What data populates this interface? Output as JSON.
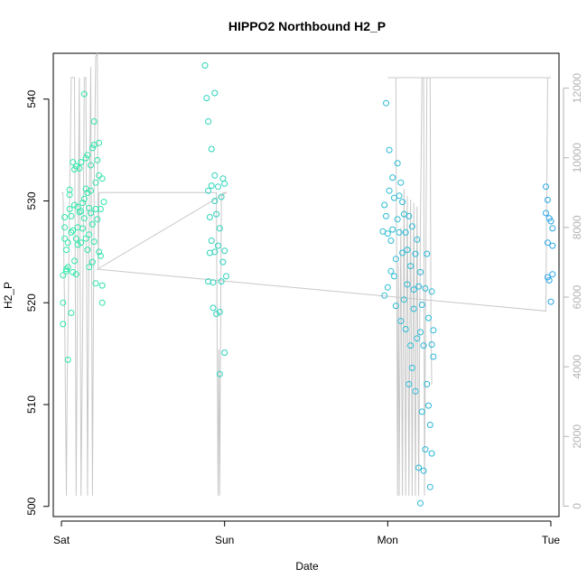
{
  "chart_data": {
    "type": "scatter",
    "title": "HIPPO2 Northbound H2_P",
    "xlabel": "Date",
    "ylabel": "H2_P",
    "x_ticks": [
      "Sat",
      "Sun",
      "Mon",
      "Tue"
    ],
    "y_ticks": [
      500,
      510,
      520,
      530,
      540
    ],
    "y_right_ticks": [
      0,
      2000,
      4000,
      6000,
      8000,
      10000,
      12000
    ],
    "xlim": [
      -0.05,
      3.05
    ],
    "ylim": [
      499,
      544.5
    ],
    "y_right_lim": [
      -300,
      13000
    ],
    "axis_color_right": "#b3b3b3",
    "line_color": "#c8c8c8",
    "point_color_start": "#2ee8a8",
    "point_color_end": "#29a6e6",
    "grid": false,
    "series": [
      {
        "points": [
          [
            0.01,
            520.0
          ],
          [
            0.01,
            517.9
          ],
          [
            0.01,
            522.7
          ],
          [
            0.02,
            528.4
          ],
          [
            0.02,
            526.3
          ],
          [
            0.02,
            527.4
          ],
          [
            0.03,
            523.3
          ],
          [
            0.03,
            523.1
          ],
          [
            0.03,
            525.2
          ],
          [
            0.04,
            514.4
          ],
          [
            0.04,
            525.9
          ],
          [
            0.04,
            523.5
          ],
          [
            0.05,
            529.2
          ],
          [
            0.05,
            530.6
          ],
          [
            0.05,
            531.1
          ],
          [
            0.06,
            519.0
          ],
          [
            0.06,
            526.9
          ],
          [
            0.06,
            528.5
          ],
          [
            0.07,
            533.8
          ],
          [
            0.07,
            527.1
          ],
          [
            0.07,
            523.0
          ],
          [
            0.08,
            533.1
          ],
          [
            0.08,
            529.6
          ],
          [
            0.08,
            524.1
          ],
          [
            0.09,
            522.8
          ],
          [
            0.09,
            526.3
          ],
          [
            0.09,
            533.4
          ],
          [
            0.1,
            525.7
          ],
          [
            0.1,
            529.4
          ],
          [
            0.1,
            527.4
          ],
          [
            0.11,
            533.2
          ],
          [
            0.11,
            528.9
          ],
          [
            0.12,
            533.8
          ],
          [
            0.12,
            525.9
          ],
          [
            0.12,
            529.0
          ],
          [
            0.13,
            529.8
          ],
          [
            0.13,
            527.3
          ],
          [
            0.14,
            530.2
          ],
          [
            0.14,
            540.5
          ],
          [
            0.14,
            528.3
          ],
          [
            0.15,
            534.2
          ],
          [
            0.15,
            526.3
          ],
          [
            0.15,
            531.2
          ],
          [
            0.16,
            534.5
          ],
          [
            0.16,
            530.8
          ],
          [
            0.16,
            525.2
          ],
          [
            0.17,
            529.3
          ],
          [
            0.17,
            523.5
          ],
          [
            0.17,
            526.7
          ],
          [
            0.18,
            533.5
          ],
          [
            0.18,
            528.8
          ],
          [
            0.18,
            531.0
          ],
          [
            0.19,
            535.2
          ],
          [
            0.19,
            527.7
          ],
          [
            0.19,
            524.0
          ],
          [
            0.2,
            537.8
          ],
          [
            0.2,
            535.5
          ],
          [
            0.2,
            526.0
          ],
          [
            0.21,
            531.8
          ],
          [
            0.21,
            529.2
          ],
          [
            0.21,
            521.9
          ],
          [
            0.22,
            534.0
          ],
          [
            0.22,
            528.2
          ],
          [
            0.23,
            535.7
          ],
          [
            0.23,
            525.0
          ],
          [
            0.23,
            532.5
          ],
          [
            0.24,
            529.2
          ],
          [
            0.24,
            524.6
          ],
          [
            0.25,
            532.2
          ],
          [
            0.25,
            520.0
          ],
          [
            0.25,
            521.7
          ],
          [
            0.26,
            529.9
          ],
          [
            0.88,
            543.3
          ],
          [
            0.89,
            540.1
          ],
          [
            0.9,
            537.8
          ],
          [
            0.9,
            531.0
          ],
          [
            0.9,
            522.1
          ],
          [
            0.91,
            528.4
          ],
          [
            0.91,
            524.9
          ],
          [
            0.92,
            535.1
          ],
          [
            0.92,
            531.5
          ],
          [
            0.92,
            526.1
          ],
          [
            0.93,
            522.0
          ],
          [
            0.93,
            519.5
          ],
          [
            0.94,
            530.0
          ],
          [
            0.94,
            532.5
          ],
          [
            0.94,
            540.6
          ],
          [
            0.94,
            525.0
          ],
          [
            0.95,
            518.9
          ],
          [
            0.95,
            528.7
          ],
          [
            0.96,
            531.4
          ],
          [
            0.96,
            525.6
          ],
          [
            0.97,
            519.1
          ],
          [
            0.97,
            513.0
          ],
          [
            0.97,
            527.3
          ],
          [
            0.98,
            522.1
          ],
          [
            0.98,
            530.4
          ],
          [
            0.99,
            524.0
          ],
          [
            0.99,
            532.2
          ],
          [
            1.0,
            531.7
          ],
          [
            1.0,
            525.1
          ],
          [
            1.0,
            515.1
          ],
          [
            1.01,
            522.6
          ],
          [
            1.97,
            527.0
          ],
          [
            1.98,
            520.7
          ],
          [
            1.98,
            529.6
          ],
          [
            1.99,
            539.6
          ],
          [
            1.99,
            528.5
          ],
          [
            2.0,
            521.5
          ],
          [
            2.0,
            526.8
          ],
          [
            2.01,
            535.0
          ],
          [
            2.01,
            531.0
          ],
          [
            2.02,
            526.1
          ],
          [
            2.02,
            523.1
          ],
          [
            2.03,
            532.3
          ],
          [
            2.03,
            527.2
          ],
          [
            2.04,
            530.3
          ],
          [
            2.04,
            522.6
          ],
          [
            2.05,
            519.7
          ],
          [
            2.05,
            524.3
          ],
          [
            2.06,
            533.7
          ],
          [
            2.06,
            528.2
          ],
          [
            2.07,
            530.5
          ],
          [
            2.07,
            526.9
          ],
          [
            2.08,
            531.8
          ],
          [
            2.08,
            518.2
          ],
          [
            2.09,
            529.9
          ],
          [
            2.09,
            524.9
          ],
          [
            2.1,
            528.7
          ],
          [
            2.1,
            520.3
          ],
          [
            2.11,
            526.9
          ],
          [
            2.11,
            517.4
          ],
          [
            2.12,
            525.2
          ],
          [
            2.12,
            521.8
          ],
          [
            2.13,
            528.5
          ],
          [
            2.13,
            512.0
          ],
          [
            2.14,
            523.6
          ],
          [
            2.14,
            515.8
          ],
          [
            2.15,
            527.5
          ],
          [
            2.15,
            513.6
          ],
          [
            2.16,
            521.3
          ],
          [
            2.16,
            519.4
          ],
          [
            2.17,
            524.8
          ],
          [
            2.17,
            511.3
          ],
          [
            2.18,
            526.2
          ],
          [
            2.18,
            516.5
          ],
          [
            2.19,
            521.6
          ],
          [
            2.19,
            503.8
          ],
          [
            2.2,
            500.3
          ],
          [
            2.2,
            523.0
          ],
          [
            2.2,
            517.1
          ],
          [
            2.21,
            519.8
          ],
          [
            2.21,
            509.3
          ],
          [
            2.22,
            503.5
          ],
          [
            2.22,
            515.8
          ],
          [
            2.23,
            505.6
          ],
          [
            2.23,
            521.4
          ],
          [
            2.24,
            524.8
          ],
          [
            2.24,
            512.0
          ],
          [
            2.25,
            518.5
          ],
          [
            2.25,
            509.9
          ],
          [
            2.26,
            501.9
          ],
          [
            2.26,
            508.0
          ],
          [
            2.27,
            515.9
          ],
          [
            2.27,
            505.2
          ],
          [
            2.27,
            521.1
          ],
          [
            2.28,
            517.3
          ],
          [
            2.28,
            514.7
          ],
          [
            2.97,
            531.4
          ],
          [
            2.97,
            528.8
          ],
          [
            2.98,
            530.1
          ],
          [
            2.98,
            525.9
          ],
          [
            2.98,
            522.5
          ],
          [
            2.99,
            528.3
          ],
          [
            2.99,
            522.2
          ],
          [
            3.0,
            520.1
          ],
          [
            3.0,
            528.0
          ],
          [
            3.01,
            527.3
          ],
          [
            3.01,
            525.6
          ],
          [
            3.01,
            522.8
          ]
        ],
        "secondary_line": [
          [
            0.0,
            8600
          ],
          [
            0.01,
            8700
          ],
          [
            0.02,
            5500
          ],
          [
            0.025,
            1800
          ],
          [
            0.03,
            300
          ],
          [
            0.04,
            4000
          ],
          [
            0.05,
            8000
          ],
          [
            0.055,
            11000
          ],
          [
            0.06,
            12300
          ],
          [
            0.07,
            12300
          ],
          [
            0.08,
            12300
          ],
          [
            0.085,
            6000
          ],
          [
            0.09,
            300
          ],
          [
            0.1,
            5000
          ],
          [
            0.11,
            12300
          ],
          [
            0.115,
            12300
          ],
          [
            0.12,
            3000
          ],
          [
            0.125,
            300
          ],
          [
            0.13,
            6000
          ],
          [
            0.14,
            11500
          ],
          [
            0.15,
            12300
          ],
          [
            0.16,
            12300
          ],
          [
            0.165,
            4000
          ],
          [
            0.17,
            300
          ],
          [
            0.18,
            5000
          ],
          [
            0.19,
            12000
          ],
          [
            0.2,
            12600
          ],
          [
            0.205,
            2000
          ],
          [
            0.21,
            12600
          ],
          [
            0.22,
            12900
          ],
          [
            0.23,
            13000
          ],
          [
            0.235,
            7000
          ],
          [
            0.24,
            9000
          ],
          [
            0.25,
            9000
          ],
          [
            0.95,
            9000
          ],
          [
            0.96,
            8800
          ],
          [
            0.965,
            300
          ],
          [
            0.97,
            4000
          ],
          [
            0.98,
            300
          ],
          [
            0.99,
            8700
          ],
          [
            1.0,
            9000
          ]
        ],
        "note": "secondary_line_unused"
      }
    ],
    "right_axis_line": [
      [
        0.0,
        9000
      ],
      [
        0.25,
        9000
      ],
      [
        0.95,
        9000
      ],
      [
        1.0,
        9000
      ]
    ]
  }
}
